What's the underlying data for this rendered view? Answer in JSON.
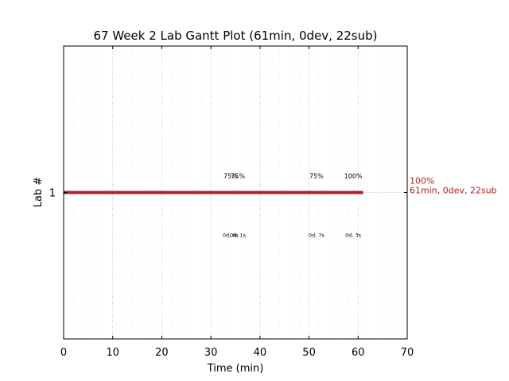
{
  "chart_data": {
    "type": "gantt",
    "title": "67 Week 2 Lab Gantt Plot (61min, 0dev, 22sub)",
    "xlabel": "Time (min)",
    "ylabel": "Lab #",
    "xlim": [
      0,
      70
    ],
    "x_ticks": [
      "0",
      "10",
      "20",
      "30",
      "40",
      "50",
      "60",
      "70"
    ],
    "y_ticks": [
      "1"
    ],
    "grid": "vertical dotted at major ticks",
    "bar_color": "#b22222",
    "rows": [
      {
        "lab": "1",
        "start": 0,
        "end": 61,
        "side_label_line1": "100%",
        "side_label_line2": "61min, 0dev, 22sub",
        "annotations": [
          {
            "x": 34,
            "pct": "75%",
            "dev": "0d, 0s"
          },
          {
            "x": 35.5,
            "pct": "75%",
            "dev": "0d, 1s"
          },
          {
            "x": 51.5,
            "pct": "75%",
            "dev": "0d, 7s"
          },
          {
            "x": 59,
            "pct": "100%",
            "dev": "0d, 3s"
          }
        ]
      }
    ]
  }
}
